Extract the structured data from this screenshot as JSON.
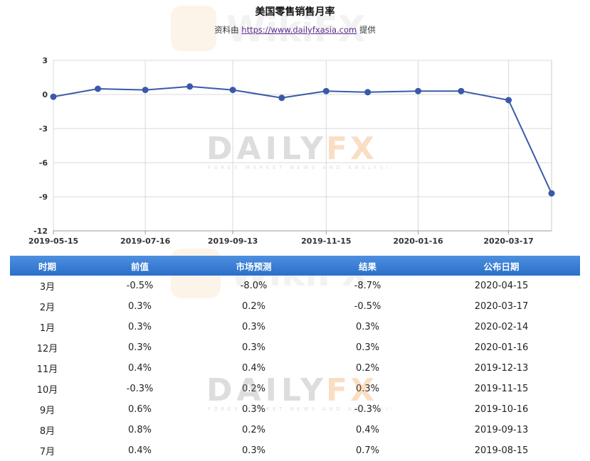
{
  "title": "美国零售销售月率",
  "subtitle": {
    "prefix": "资料由",
    "link": "https://www.dailyfxasia.com",
    "suffix": "提供"
  },
  "watermark": {
    "brand1": "DAILY",
    "brand2": "FX",
    "tagline": "FOREX MARKET NEWS AND ANALYSIS",
    "logo": "WikiFX"
  },
  "chart_data": {
    "type": "line",
    "x": [
      "2019-05-15",
      "2019-06-14",
      "2019-07-16",
      "2019-08-15",
      "2019-09-13",
      "2019-10-16",
      "2019-11-15",
      "2019-12-13",
      "2020-01-16",
      "2020-02-14",
      "2020-03-17",
      "2020-04-15"
    ],
    "series": [
      {
        "values": [
          -0.2,
          0.5,
          0.4,
          0.7,
          0.4,
          -0.3,
          0.3,
          0.2,
          0.3,
          0.3,
          -0.5,
          -8.7
        ]
      }
    ],
    "x_tick_labels": [
      "2019-05-15",
      "2019-07-16",
      "2019-09-13",
      "2019-11-15",
      "2020-01-16",
      "2020-03-17"
    ],
    "y_ticks": [
      3,
      0,
      -3,
      -6,
      -9,
      -12
    ],
    "ylim": [
      -12,
      3
    ],
    "grid": true,
    "line_color": "#3a5aa8"
  },
  "table": {
    "headers": [
      "时期",
      "前值",
      "市场预测",
      "结果",
      "公布日期"
    ],
    "rows": [
      [
        "3月",
        "-0.5%",
        "-8.0%",
        "-8.7%",
        "2020-04-15"
      ],
      [
        "2月",
        "0.3%",
        "0.2%",
        "-0.5%",
        "2020-03-17"
      ],
      [
        "1月",
        "0.3%",
        "0.3%",
        "0.3%",
        "2020-02-14"
      ],
      [
        "12月",
        "0.3%",
        "0.3%",
        "0.3%",
        "2020-01-16"
      ],
      [
        "11月",
        "0.4%",
        "0.4%",
        "0.2%",
        "2019-12-13"
      ],
      [
        "10月",
        "-0.3%",
        "0.2%",
        "0.3%",
        "2019-11-15"
      ],
      [
        "9月",
        "0.6%",
        "0.3%",
        "-0.3%",
        "2019-10-16"
      ],
      [
        "8月",
        "0.8%",
        "0.2%",
        "0.4%",
        "2019-09-13"
      ],
      [
        "7月",
        "0.4%",
        "0.3%",
        "0.7%",
        "2019-08-15"
      ]
    ]
  }
}
